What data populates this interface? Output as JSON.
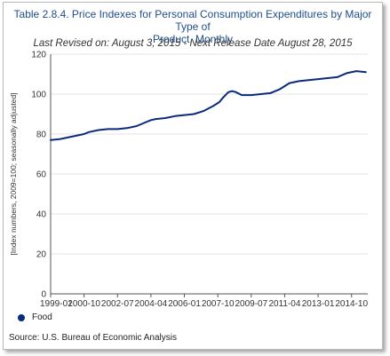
{
  "header": {
    "title_line1": "Table 2.8.4. Price Indexes for Personal Consumption Expenditures by Major Type of",
    "title_line2": "Product, Monthly",
    "revision": "Last Revised on: August 3, 2015 - Next Release Date August 28, 2015"
  },
  "footer": {
    "source": "Source: U.S. Bureau of Economic  Analysis"
  },
  "colors": {
    "series": "#0a2a7a",
    "grid": "#e3e3e3",
    "axis": "#555555"
  },
  "chart_data": {
    "type": "line",
    "title": "Table 2.8.4. Price Indexes for Personal Consumption Expenditures by Major Type of Product, Monthly",
    "ylabel": "[Index numbers, 2009=100; seasonally adjusted]",
    "xlabel": "",
    "ylim": [
      0,
      120
    ],
    "yticks": [
      0,
      20,
      40,
      60,
      80,
      100,
      120
    ],
    "xlim": [
      1999.0,
      2015.6
    ],
    "xtick_labels": [
      "1999-01",
      "2000-10",
      "2002-07",
      "2004-04",
      "2006-01",
      "2007-10",
      "2009-07",
      "2011-04",
      "2013-01",
      "2014-10"
    ],
    "grid": "horizontal",
    "legend_position": "bottom-left",
    "series": [
      {
        "name": "Food",
        "x": [
          1999.0,
          1999.5,
          2000.0,
          2000.5,
          2000.75,
          2001.0,
          2001.5,
          2002.0,
          2002.5,
          2003.0,
          2003.5,
          2004.0,
          2004.25,
          2004.5,
          2005.0,
          2005.5,
          2006.0,
          2006.5,
          2007.0,
          2007.5,
          2007.83,
          2008.0,
          2008.3,
          2008.5,
          2008.7,
          2009.0,
          2009.5,
          2010.0,
          2010.5,
          2011.0,
          2011.5,
          2012.0,
          2012.5,
          2013.0,
          2013.5,
          2014.0,
          2014.5,
          2015.0,
          2015.5
        ],
        "values": [
          77.0,
          77.5,
          78.5,
          79.5,
          80.0,
          81.0,
          82.0,
          82.5,
          82.5,
          83.0,
          84.0,
          86.0,
          87.0,
          87.5,
          88.0,
          89.0,
          89.5,
          90.0,
          91.5,
          94.0,
          96.0,
          98.0,
          101.0,
          101.5,
          101.0,
          99.5,
          99.5,
          100.0,
          100.5,
          102.5,
          105.5,
          106.5,
          107.0,
          107.5,
          108.0,
          108.5,
          110.5,
          111.5,
          111.0
        ]
      }
    ]
  }
}
